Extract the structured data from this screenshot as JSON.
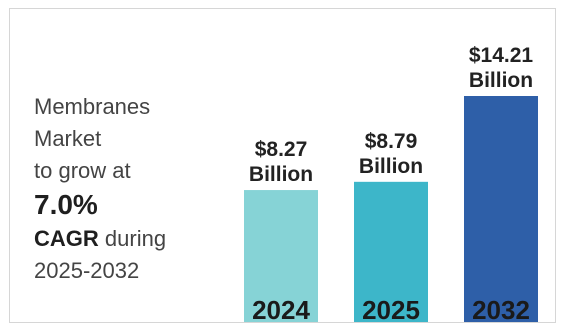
{
  "headline": {
    "line1": "Membranes",
    "line2": "Market",
    "line3": "to grow at",
    "rate": "7.0%",
    "cagr": "CAGR",
    "during": " during",
    "period": "2025-2032"
  },
  "colors": {
    "bar_2024": "#86d3d6",
    "bar_2025": "#3db6c9",
    "bar_2032": "#2e5fa8"
  },
  "chart_data": {
    "type": "bar",
    "categories": [
      "2024",
      "2025",
      "2032"
    ],
    "values": [
      8.27,
      8.79,
      14.21
    ],
    "value_labels": [
      [
        "$8.27",
        "Billion"
      ],
      [
        "$8.79",
        "Billion"
      ],
      [
        "$14.21",
        "Billion"
      ]
    ],
    "unit": "Billion USD",
    "title": "",
    "xlabel": "",
    "ylabel": "",
    "ylim": [
      0,
      14.21
    ],
    "grid": false,
    "legend": "none"
  }
}
